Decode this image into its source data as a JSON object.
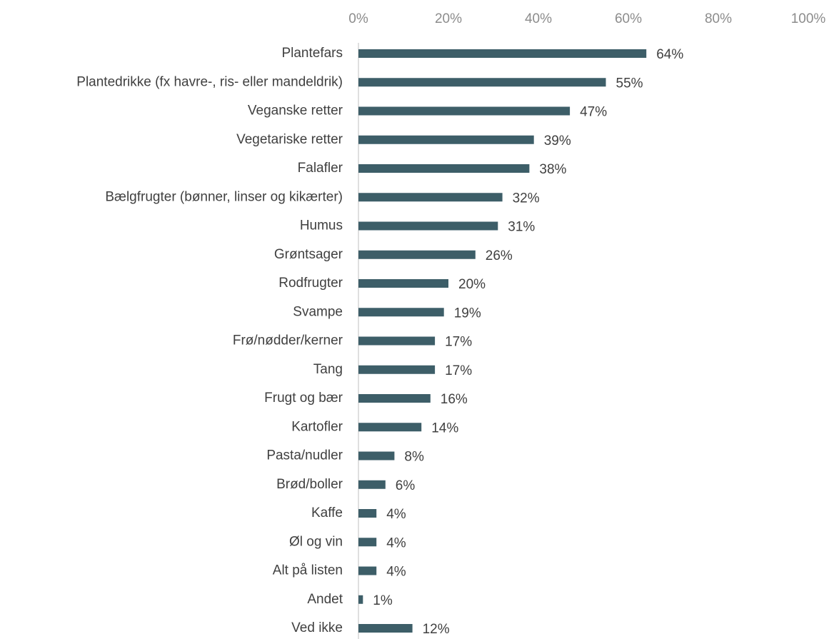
{
  "chart_data": {
    "type": "barh",
    "categories": [
      "Plantefars",
      "Plantedrikke (fx havre-, ris- eller mandeldrik)",
      "Veganske retter",
      "Vegetariske retter",
      "Falafler",
      "Bælgfrugter (bønner, linser og kikærter)",
      "Humus",
      "Grøntsager",
      "Rodfrugter",
      "Svampe",
      "Frø/nødder/kerner",
      "Tang",
      "Frugt og bær",
      "Kartofler",
      "Pasta/nudler",
      "Brød/boller",
      "Kaffe",
      "Øl og vin",
      "Alt på listen",
      "Andet",
      "Ved ikke"
    ],
    "values": [
      64,
      55,
      47,
      39,
      38,
      32,
      31,
      26,
      20,
      19,
      17,
      17,
      16,
      14,
      8,
      6,
      4,
      4,
      4,
      1,
      12
    ],
    "value_labels": [
      "64%",
      "55%",
      "47%",
      "39%",
      "38%",
      "32%",
      "31%",
      "26%",
      "20%",
      "19%",
      "17%",
      "17%",
      "16%",
      "14%",
      "8%",
      "6%",
      "4%",
      "4%",
      "4%",
      "1%",
      "12%"
    ],
    "color": "#3d5e68",
    "xlim": [
      0,
      100
    ],
    "xticks": [
      {
        "value": 0,
        "label": "0%"
      },
      {
        "value": 20,
        "label": "20%"
      },
      {
        "value": 40,
        "label": "40%"
      },
      {
        "value": 60,
        "label": "60%"
      },
      {
        "value": 80,
        "label": "80%"
      },
      {
        "value": 100,
        "label": "100%"
      }
    ],
    "grid": false
  }
}
